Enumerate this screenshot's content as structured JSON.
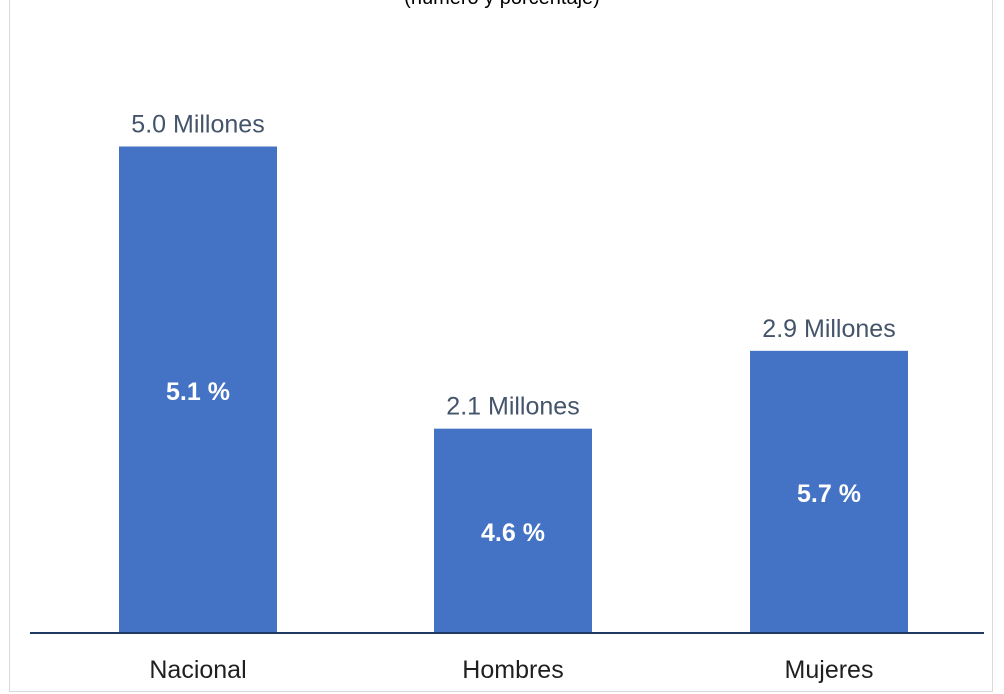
{
  "chart_data": {
    "type": "bar",
    "subtitle": "(número y porcentaje)",
    "categories": [
      "Nacional",
      "Hombres",
      "Mujeres"
    ],
    "series": [
      {
        "values": [
          5.0,
          2.1,
          2.9
        ],
        "value_labels": [
          "5.0 Millones",
          "2.1 Millones",
          "2.9 Millones"
        ],
        "percent_labels": [
          "5.1 %",
          "4.6 %",
          "5.7 %"
        ]
      }
    ],
    "ylim": [
      0,
      5.55
    ],
    "grid": false,
    "legend": "none",
    "colors": {
      "bar": "#4472c4",
      "axis": "#1f3864",
      "top_label": "#44546a",
      "inner_label": "#ffffff",
      "category_label": "#1f1f1f"
    }
  }
}
